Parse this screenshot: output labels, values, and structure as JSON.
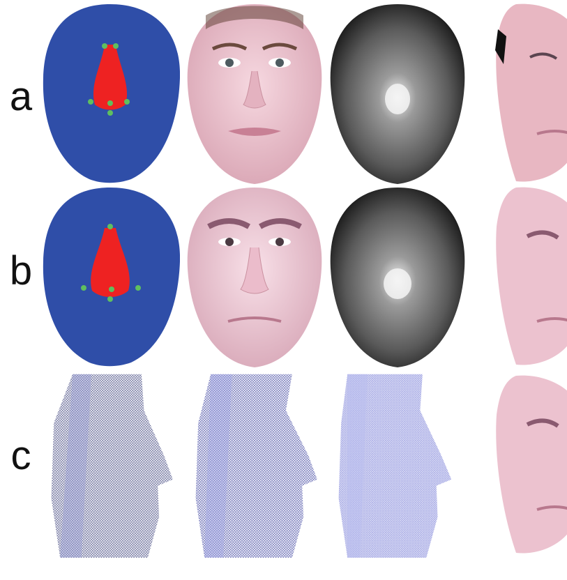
{
  "figure": {
    "rows": [
      {
        "label": "a",
        "panels": [
          {
            "kind": "segmentation-mask",
            "colors": {
              "face": "#2f4ea8",
              "nose": "#ee2222",
              "landmark": "#5fbf5f"
            }
          },
          {
            "kind": "texture-frontal",
            "colors": {
              "skin": "#f1c9d3",
              "skin_shadow": "#d9a5b4",
              "hair": "#5a3a2e"
            }
          },
          {
            "kind": "depth-map",
            "colors": {
              "dark": "#1f1f1f",
              "light": "#f2f2f2"
            }
          },
          {
            "kind": "texture-profile",
            "colors": {
              "skin": "#e8b7c2",
              "dark": "#5b4550"
            }
          }
        ]
      },
      {
        "label": "b",
        "panels": [
          {
            "kind": "segmentation-mask",
            "colors": {
              "face": "#2f4ea8",
              "nose": "#ee2222",
              "landmark": "#5fbf5f"
            }
          },
          {
            "kind": "texture-frontal",
            "colors": {
              "skin": "#f3d0dc",
              "skin_shadow": "#d8a8b8",
              "hair": "#6b4a5a"
            }
          },
          {
            "kind": "depth-map",
            "colors": {
              "dark": "#1f1f1f",
              "light": "#f2f2f2"
            }
          },
          {
            "kind": "texture-profile",
            "colors": {
              "skin": "#ecc2cf",
              "dark": "#5b4550"
            }
          }
        ]
      },
      {
        "label": "c",
        "panels": [
          {
            "kind": "mesh-profile",
            "colors": {
              "mesh": "#3a3f7a",
              "mesh_light": "#8e95d6"
            }
          },
          {
            "kind": "mesh-profile",
            "colors": {
              "mesh": "#3d43a0",
              "mesh_light": "#9aa0e8"
            }
          },
          {
            "kind": "mesh-profile",
            "colors": {
              "mesh": "#7a80d8",
              "mesh_light": "#b7bcf0"
            }
          },
          {
            "kind": "texture-profile",
            "colors": {
              "skin": "#ecc2cf",
              "dark": "#5b4550"
            }
          }
        ]
      }
    ]
  }
}
